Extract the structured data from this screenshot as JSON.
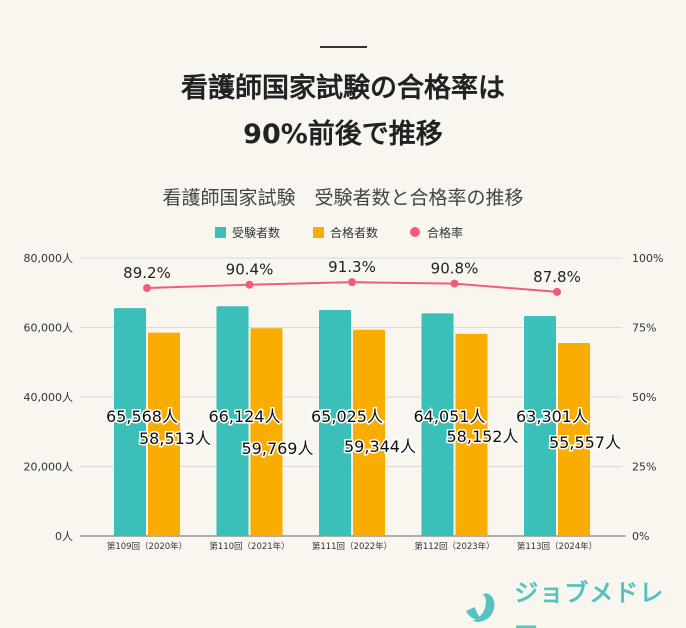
{
  "headline": {
    "line1": "看護師国家試験の合格率は",
    "line2": "90%前後で推移"
  },
  "chart_data": {
    "type": "bar",
    "title": "看護師国家試験　受験者数と合格率の推移",
    "categories": [
      "第109回（2020年）",
      "第110回（2021年）",
      "第111回（2022年）",
      "第112回（2023年）",
      "第113回（2024年）"
    ],
    "series": [
      {
        "name": "受験者数",
        "type": "bar",
        "axis": "left",
        "color": "#3bbfb9",
        "values": [
          65568,
          66124,
          65025,
          64051,
          63301
        ],
        "labels": [
          "65,568人",
          "66,124人",
          "65,025人",
          "64,051人",
          "63,301人"
        ]
      },
      {
        "name": "合格者数",
        "type": "bar",
        "axis": "left",
        "color": "#f9ad00",
        "values": [
          58513,
          59769,
          59344,
          58152,
          55557
        ],
        "labels": [
          "58,513人",
          "59,769人",
          "59,344人",
          "58,152人",
          "55,557人"
        ]
      },
      {
        "name": "合格率",
        "type": "line",
        "axis": "right",
        "color": "#f25c7b",
        "values": [
          89.2,
          90.4,
          91.3,
          90.8,
          87.8
        ],
        "labels": [
          "89.2%",
          "90.4%",
          "91.3%",
          "90.8%",
          "87.8%"
        ]
      }
    ],
    "y_left": {
      "range": [
        0,
        80000
      ],
      "ticks": [
        "0人",
        "20,000人",
        "40,000人",
        "60,000人",
        "80,000人"
      ]
    },
    "y_right": {
      "range": [
        0,
        100
      ],
      "ticks": [
        "0%",
        "25%",
        "50%",
        "75%",
        "100%"
      ]
    },
    "grid": true,
    "legend": "top"
  },
  "logo": {
    "text": "ジョブメドレー",
    "color": "#55c2bd"
  }
}
